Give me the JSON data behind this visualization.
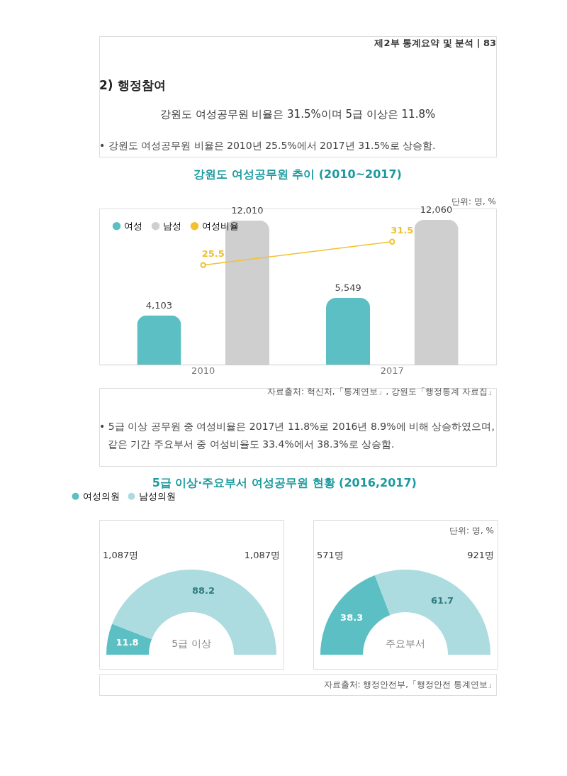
{
  "chart_data": [
    {
      "type": "bar",
      "title": "강원도 여성공무원 추이 (2010~2017)",
      "categories": [
        "2010",
        "2017"
      ],
      "series": [
        {
          "name": "여성",
          "color": "#5bbfc4",
          "values": [
            4103,
            5549
          ],
          "value_labels": [
            "4,103",
            "5,549"
          ]
        },
        {
          "name": "남성",
          "color": "#cfcfcf",
          "values": [
            12010,
            12060
          ],
          "value_labels": [
            "12,010",
            "12,060"
          ]
        },
        {
          "name": "여성비율",
          "color": "#f2c12e",
          "values": [
            25.5,
            31.5
          ],
          "value_labels": [
            "25.5",
            "31.5"
          ],
          "type": "line",
          "axis": "y2"
        }
      ],
      "y2lim": [
        0,
        40
      ],
      "legend": "top left",
      "marker": "circle",
      "tick_labels": "x",
      "annotations": [
        "제2부 통계요약 및 분석 | 83",
        "2) 행정참여",
        "강원도 여성공무원 비율은 31.5%이며 5급 이상은 11.8%",
        "• 강원도 여성공무원 비율은 2010년 25.5%에서 2017년 31.5%로 상승함.",
        "단위: 명, %",
        "자료출처: 혁신처,「통계연보」, 강원도「행정통계 자료집」",
        "• 5급 이상 공무원 중 여성비율은 2017년 11.8%로 2016년 8.9%에 비해 상승하였으며,",
        "같은 기간 주요부서 중 여성비율도 33.4%에서 38.3%로 상승함."
      ]
    },
    {
      "type": "donut",
      "title": "5급 이상·주요부서 여성공무원 현황 (2016,2017)",
      "categories": [
        "여성의원",
        "남성의원"
      ],
      "colors": [
        "#5bbfc4",
        "#acdcdf"
      ],
      "data_labels": true,
      "legend": "top left",
      "series": [
        {
          "name": "5급 이상",
          "values": [
            11.8,
            88.2
          ]
        },
        {
          "name": "주요부서",
          "values": [
            38.3,
            61.7
          ]
        }
      ],
      "annotations": [
        "단위: 명, %",
        "1,087명",
        "1,087명",
        "571명",
        "921명",
        "자료출처: 행정안전부,「행정안전 통계연보」"
      ]
    }
  ]
}
